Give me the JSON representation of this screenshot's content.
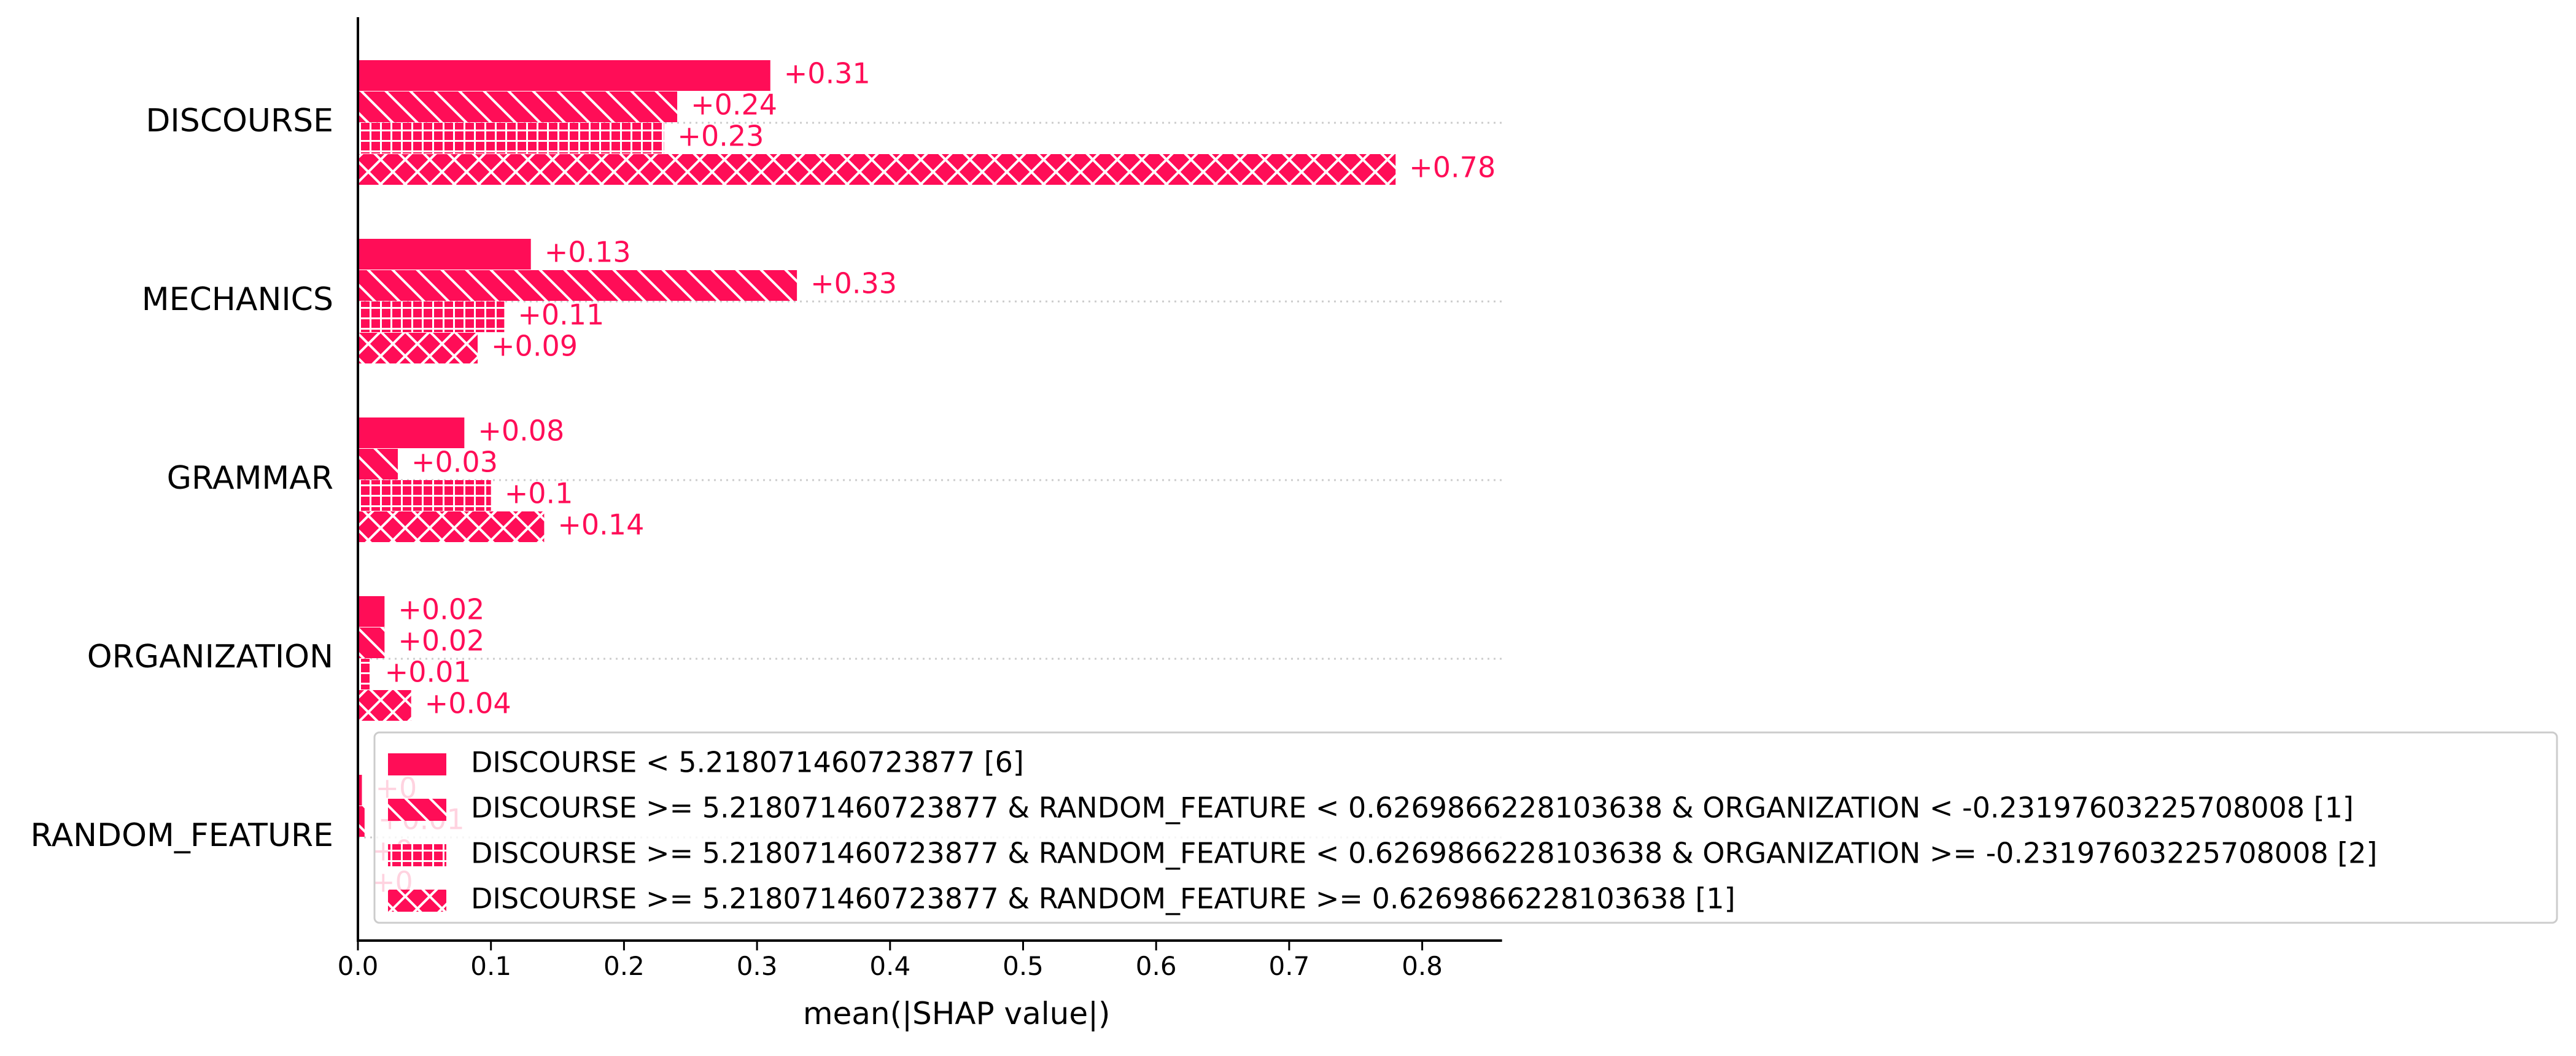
{
  "chart_data": {
    "type": "bar",
    "orientation": "horizontal",
    "title": "",
    "xlabel": "mean(|SHAP value|)",
    "ylabel": "",
    "xlim": [
      0.0,
      0.86
    ],
    "xticks": [
      "0.0",
      "0.1",
      "0.2",
      "0.3",
      "0.4",
      "0.5",
      "0.6",
      "0.7",
      "0.8"
    ],
    "grid": "dotted horizontal line per category",
    "legend_position": "lower-right",
    "bar_color": "#ff0d57",
    "categories": [
      "DISCOURSE",
      "MECHANICS",
      "GRAMMAR",
      "ORGANIZATION",
      "RANDOM_FEATURE"
    ],
    "series": [
      {
        "name": "DISCOURSE < 5.218071460723877 [6]",
        "pattern": "solid",
        "values": [
          0.31,
          0.13,
          0.08,
          0.02,
          0.003
        ],
        "labels": [
          "+0.31",
          "+0.13",
          "+0.08",
          "+0.02",
          "+0"
        ]
      },
      {
        "name": "DISCOURSE >= 5.218071460723877 & RANDOM_FEATURE < 0.6269866228103638 & ORGANIZATION < -0.23197603225708008 [1]",
        "pattern": "diagonal",
        "values": [
          0.24,
          0.33,
          0.03,
          0.02,
          0.005
        ],
        "labels": [
          "+0.24",
          "+0.33",
          "+0.03",
          "+0.02",
          "+0.01"
        ]
      },
      {
        "name": "DISCOURSE >= 5.218071460723877 & RANDOM_FEATURE < 0.6269866228103638 & ORGANIZATION >= -0.23197603225708008 [2]",
        "pattern": "grid",
        "values": [
          0.23,
          0.11,
          0.1,
          0.01,
          0.0
        ],
        "labels": [
          "+0.23",
          "+0.11",
          "+0.1",
          "+0.01",
          "+0"
        ]
      },
      {
        "name": "DISCOURSE >= 5.218071460723877 & RANDOM_FEATURE >= 0.6269866228103638 [1]",
        "pattern": "crosshatch",
        "values": [
          0.78,
          0.09,
          0.14,
          0.04,
          0.0
        ],
        "labels": [
          "+0.78",
          "+0.09",
          "+0.14",
          "+0.04",
          "+0"
        ]
      }
    ]
  }
}
